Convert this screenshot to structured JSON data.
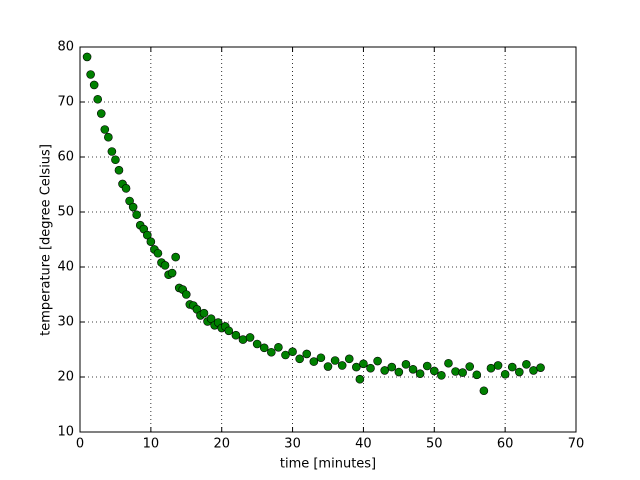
{
  "chart_data": {
    "type": "scatter",
    "xlabel": "time [minutes]",
    "ylabel": "temperature [degree Celsius]",
    "x": [
      1,
      1.5,
      2,
      2.5,
      3,
      3.5,
      4,
      4.5,
      5,
      5.5,
      6,
      6.5,
      7,
      7.5,
      8,
      8.5,
      9,
      9.5,
      10,
      10.5,
      11,
      11.5,
      12,
      12.5,
      13,
      13.5,
      14,
      14.5,
      15,
      15.5,
      16,
      16.5,
      17,
      17.5,
      18,
      18.5,
      19,
      19.5,
      20,
      20.5,
      21,
      22,
      23,
      24,
      25,
      26,
      27,
      28,
      29,
      30,
      31,
      32,
      33,
      34,
      35,
      36,
      37,
      38,
      39,
      39.5,
      40,
      41,
      42,
      43,
      44,
      45,
      46,
      47,
      48,
      49,
      50,
      51,
      52,
      53,
      54,
      55,
      56,
      57,
      58,
      59,
      60,
      61,
      62,
      63,
      64,
      65
    ],
    "values": [
      78.2,
      75.0,
      73.1,
      70.5,
      67.9,
      65.0,
      63.6,
      61.0,
      59.5,
      57.6,
      55.1,
      54.3,
      52.0,
      50.9,
      49.5,
      47.6,
      46.9,
      45.8,
      44.6,
      43.2,
      42.5,
      40.8,
      40.3,
      38.6,
      38.9,
      41.8,
      36.2,
      35.9,
      35.0,
      33.2,
      33.0,
      32.3,
      31.2,
      31.6,
      30.1,
      30.6,
      29.4,
      29.9,
      28.9,
      29.2,
      28.4,
      27.6,
      26.8,
      27.2,
      26.0,
      25.3,
      24.5,
      25.4,
      24.0,
      24.6,
      23.3,
      24.2,
      22.8,
      23.5,
      21.9,
      23.0,
      22.1,
      23.3,
      21.8,
      19.6,
      22.4,
      21.6,
      22.9,
      21.2,
      21.8,
      20.9,
      22.3,
      21.4,
      20.6,
      22.0,
      21.1,
      20.3,
      22.5,
      21.0,
      20.8,
      21.9,
      20.4,
      17.5,
      21.6,
      22.1,
      20.5,
      21.8,
      20.9,
      22.3,
      21.2,
      21.7
    ],
    "color": "#008000",
    "xlim": [
      0,
      70
    ],
    "xticks": [
      0,
      10,
      20,
      30,
      40,
      50,
      60,
      70
    ],
    "ylim": [
      10,
      80
    ],
    "yticks": [
      10,
      20,
      30,
      40,
      50,
      60,
      70,
      80
    ],
    "grid": true
  }
}
